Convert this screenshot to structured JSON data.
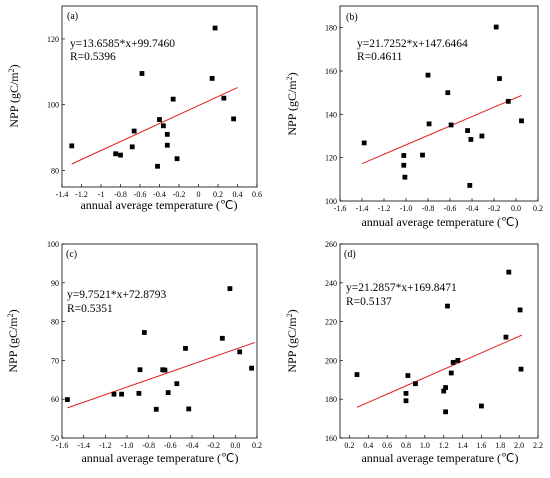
{
  "figure": {
    "background": "#ffffff",
    "point_color": "#000000",
    "fit_color": "#e31a1c"
  },
  "chart_data": [
    {
      "type": "scatter",
      "panel_label": "(a)",
      "xlabel": "annual average temperature (℃)",
      "ylabel": "NPP (gC/m²)",
      "ylabel_main": "NPP (gC/m",
      "ylabel_sup": "2",
      "ylabel_end": ")",
      "equation": "y=13.6585*x+99.7460",
      "r_text": "R=0.5396",
      "xlim": [
        -1.4,
        0.6
      ],
      "ylim": [
        75,
        130
      ],
      "xticks": [
        -1.4,
        -1.2,
        -1.0,
        -0.8,
        -0.6,
        -0.4,
        -0.2,
        0.0,
        0.2,
        0.4,
        0.6
      ],
      "xtick_labels": [
        "-1.4",
        "-1.2",
        "-1",
        "-0.8",
        "-0.6",
        "-0.4",
        "-0.2",
        "0",
        "0.2",
        "0.4",
        "0.6"
      ],
      "yticks": [
        80,
        100,
        120
      ],
      "ytick_labels": [
        "80",
        "100",
        "120"
      ],
      "fit": {
        "slope": 13.6585,
        "intercept": 99.746,
        "x_range": [
          -1.3,
          0.4
        ]
      },
      "points": [
        {
          "x": -1.3,
          "y": 87.5
        },
        {
          "x": -0.85,
          "y": 85.1
        },
        {
          "x": -0.8,
          "y": 84.7
        },
        {
          "x": -0.68,
          "y": 87.2
        },
        {
          "x": -0.66,
          "y": 92.0
        },
        {
          "x": -0.58,
          "y": 109.5
        },
        {
          "x": -0.42,
          "y": 81.3
        },
        {
          "x": -0.4,
          "y": 95.5
        },
        {
          "x": -0.36,
          "y": 93.6
        },
        {
          "x": -0.32,
          "y": 87.7
        },
        {
          "x": -0.32,
          "y": 91.0
        },
        {
          "x": -0.26,
          "y": 101.7
        },
        {
          "x": -0.22,
          "y": 83.6
        },
        {
          "x": 0.14,
          "y": 108.0
        },
        {
          "x": 0.17,
          "y": 123.3
        },
        {
          "x": 0.26,
          "y": 102.0
        },
        {
          "x": 0.36,
          "y": 95.7
        }
      ]
    },
    {
      "type": "scatter",
      "panel_label": "(b)",
      "xlabel": "annual average temperature (℃)",
      "ylabel": "NPP (gC/m²)",
      "ylabel_main": "NPP (gC/m",
      "ylabel_sup": "2",
      "ylabel_end": ")",
      "equation": "y=21.7252*x+147.6464",
      "r_text": "R=0.4611",
      "xlim": [
        -1.6,
        0.2
      ],
      "ylim": [
        100,
        190
      ],
      "xticks": [
        -1.6,
        -1.4,
        -1.2,
        -1.0,
        -0.8,
        -0.6,
        -0.4,
        -0.2,
        0.0,
        0.2
      ],
      "xtick_labels": [
        "-1.6",
        "-1.4",
        "-1.2",
        "-1.0",
        "-0.8",
        "-0.6",
        "-0.4",
        "-0.2",
        "0.0",
        "0.2"
      ],
      "yticks": [
        100,
        120,
        140,
        160,
        180
      ],
      "ytick_labels": [
        "100",
        "120",
        "140",
        "160",
        "180"
      ],
      "fit": {
        "slope": 21.7252,
        "intercept": 147.6464,
        "x_range": [
          -1.4,
          0.05
        ]
      },
      "points": [
        {
          "x": -1.38,
          "y": 126.8
        },
        {
          "x": -1.02,
          "y": 121.0
        },
        {
          "x": -1.02,
          "y": 116.5
        },
        {
          "x": -1.01,
          "y": 111.0
        },
        {
          "x": -0.85,
          "y": 121.2
        },
        {
          "x": -0.8,
          "y": 158.1
        },
        {
          "x": -0.79,
          "y": 135.6
        },
        {
          "x": -0.62,
          "y": 150.0
        },
        {
          "x": -0.59,
          "y": 135.1
        },
        {
          "x": -0.44,
          "y": 132.5
        },
        {
          "x": -0.42,
          "y": 107.2
        },
        {
          "x": -0.41,
          "y": 128.4
        },
        {
          "x": -0.31,
          "y": 130.0
        },
        {
          "x": -0.18,
          "y": 180.3
        },
        {
          "x": -0.15,
          "y": 156.5
        },
        {
          "x": -0.07,
          "y": 146.0
        },
        {
          "x": 0.05,
          "y": 137.0
        }
      ]
    },
    {
      "type": "scatter",
      "panel_label": "(c)",
      "xlabel": "annual average temperature (℃)",
      "ylabel": "NPP (gC/m²)",
      "ylabel_main": "NPP (gC/m",
      "ylabel_sup": "2",
      "ylabel_end": ")",
      "equation": "y=9.7521*x+72.8793",
      "r_text": "R=0.5351",
      "xlim": [
        -1.6,
        0.2
      ],
      "ylim": [
        50,
        100
      ],
      "xticks": [
        -1.6,
        -1.4,
        -1.2,
        -1.0,
        -0.8,
        -0.6,
        -0.4,
        -0.2,
        0.0,
        0.2
      ],
      "xtick_labels": [
        "-1.6",
        "-1.4",
        "-1.2",
        "-1.0",
        "-0.8",
        "-0.6",
        "-0.4",
        "-0.2",
        "0.0",
        "0.2"
      ],
      "yticks": [
        50,
        60,
        70,
        80,
        90,
        100
      ],
      "ytick_labels": [
        "50",
        "60",
        "70",
        "80",
        "90",
        "100"
      ],
      "fit": {
        "slope": 9.7521,
        "intercept": 72.8793,
        "x_range": [
          -1.55,
          0.18
        ]
      },
      "points": [
        {
          "x": -1.55,
          "y": 59.9
        },
        {
          "x": -1.12,
          "y": 61.3
        },
        {
          "x": -1.05,
          "y": 61.3
        },
        {
          "x": -0.89,
          "y": 61.5
        },
        {
          "x": -0.88,
          "y": 67.6
        },
        {
          "x": -0.84,
          "y": 77.2
        },
        {
          "x": -0.73,
          "y": 57.4
        },
        {
          "x": -0.67,
          "y": 67.6
        },
        {
          "x": -0.65,
          "y": 67.5
        },
        {
          "x": -0.62,
          "y": 61.7
        },
        {
          "x": -0.54,
          "y": 64.0
        },
        {
          "x": -0.46,
          "y": 73.1
        },
        {
          "x": -0.43,
          "y": 57.5
        },
        {
          "x": -0.12,
          "y": 75.7
        },
        {
          "x": -0.05,
          "y": 88.5
        },
        {
          "x": 0.04,
          "y": 72.2
        },
        {
          "x": 0.15,
          "y": 68.0
        }
      ]
    },
    {
      "type": "scatter",
      "panel_label": "(d)",
      "xlabel": "annual average temperature (℃)",
      "ylabel": "NPP (gC/m²)",
      "ylabel_main": "NPP (gC/m",
      "ylabel_sup": "2",
      "ylabel_end": ")",
      "equation": "y=21.2857*x+169.8471",
      "r_text": "R=0.5137",
      "xlim": [
        0.1,
        2.2
      ],
      "ylim": [
        160,
        260
      ],
      "xticks": [
        0.2,
        0.4,
        0.6,
        0.8,
        1.0,
        1.2,
        1.4,
        1.6,
        1.8,
        2.0,
        2.2
      ],
      "xtick_labels": [
        "0.2",
        "0.4",
        "0.6",
        "0.8",
        "1.0",
        "1.2",
        "1.4",
        "1.6",
        "1.8",
        "2.0",
        "2.2"
      ],
      "yticks": [
        160,
        180,
        200,
        220,
        240,
        260
      ],
      "ytick_labels": [
        "160",
        "180",
        "200",
        "220",
        "240",
        "260"
      ],
      "fit": {
        "slope": 21.2857,
        "intercept": 169.8471,
        "x_range": [
          0.28,
          2.03
        ]
      },
      "points": [
        {
          "x": 0.28,
          "y": 192.7
        },
        {
          "x": 0.8,
          "y": 183.0
        },
        {
          "x": 0.8,
          "y": 179.2
        },
        {
          "x": 0.82,
          "y": 192.2
        },
        {
          "x": 0.9,
          "y": 188.0
        },
        {
          "x": 1.2,
          "y": 184.2
        },
        {
          "x": 1.22,
          "y": 173.5
        },
        {
          "x": 1.22,
          "y": 186.0
        },
        {
          "x": 1.24,
          "y": 228.0
        },
        {
          "x": 1.28,
          "y": 193.5
        },
        {
          "x": 1.3,
          "y": 199.0
        },
        {
          "x": 1.35,
          "y": 200.0
        },
        {
          "x": 1.6,
          "y": 176.5
        },
        {
          "x": 1.86,
          "y": 212.0
        },
        {
          "x": 1.89,
          "y": 245.5
        },
        {
          "x": 2.01,
          "y": 226.0
        },
        {
          "x": 2.02,
          "y": 195.5
        }
      ]
    }
  ]
}
